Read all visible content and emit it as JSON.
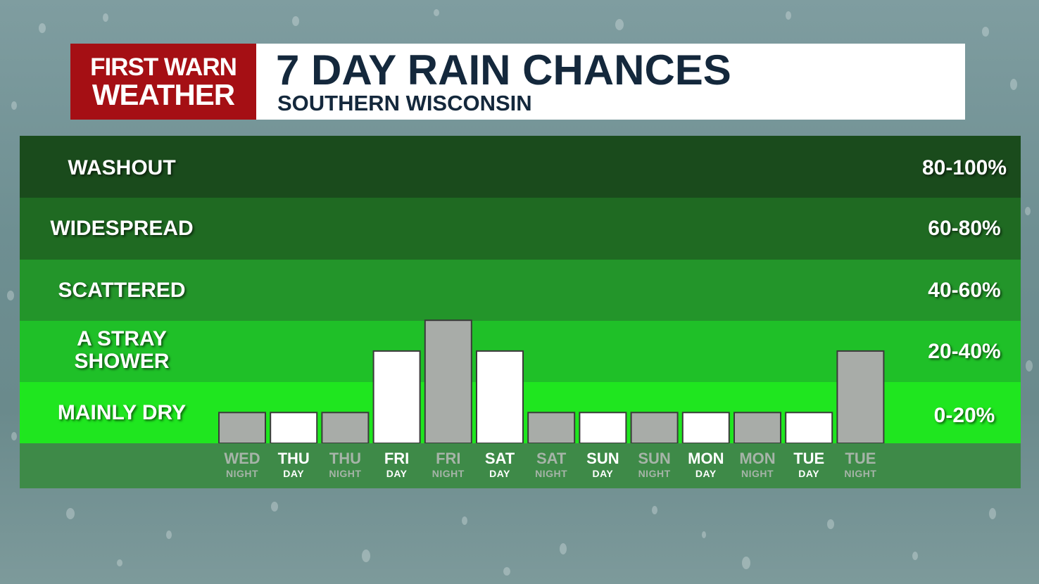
{
  "header": {
    "logo_line1": "FIRST WARN",
    "logo_line2": "WEATHER",
    "title": "7 DAY RAIN CHANCES",
    "subtitle": "SOUTHERN WISCONSIN"
  },
  "colors": {
    "logo_bg": "#a50f14",
    "title_text": "#14283c",
    "band_washout": "#1a4b1c",
    "band_widespread": "#1f6a22",
    "band_scattered": "#23952a",
    "band_stray": "#1fc028",
    "band_dry": "#1fe61f",
    "xaxis_bg": "#3e8a48",
    "bar_day": "#ffffff",
    "bar_night": "#a8aca8"
  },
  "bands": [
    {
      "label": "WASHOUT",
      "range": "80-100%"
    },
    {
      "label": "WIDESPREAD",
      "range": "60-80%"
    },
    {
      "label": "SCATTERED",
      "range": "40-60%"
    },
    {
      "label": "A STRAY SHOWER",
      "range": "20-40%"
    },
    {
      "label": "MAINLY DRY",
      "range": "0-20%"
    }
  ],
  "chart_data": {
    "type": "bar",
    "title": "7 DAY RAIN CHANCES",
    "subtitle": "SOUTHERN WISCONSIN",
    "ylim": [
      0,
      100
    ],
    "categories": [
      {
        "day": "WED",
        "period": "NIGHT"
      },
      {
        "day": "THU",
        "period": "DAY"
      },
      {
        "day": "THU",
        "period": "NIGHT"
      },
      {
        "day": "FRI",
        "period": "DAY"
      },
      {
        "day": "FRI",
        "period": "NIGHT"
      },
      {
        "day": "SAT",
        "period": "DAY"
      },
      {
        "day": "SAT",
        "period": "NIGHT"
      },
      {
        "day": "SUN",
        "period": "DAY"
      },
      {
        "day": "SUN",
        "period": "NIGHT"
      },
      {
        "day": "MON",
        "period": "DAY"
      },
      {
        "day": "MON",
        "period": "NIGHT"
      },
      {
        "day": "TUE",
        "period": "DAY"
      },
      {
        "day": "TUE",
        "period": "NIGHT"
      }
    ],
    "values": [
      10,
      10,
      10,
      30,
      40,
      30,
      10,
      10,
      10,
      10,
      10,
      10,
      30
    ]
  }
}
